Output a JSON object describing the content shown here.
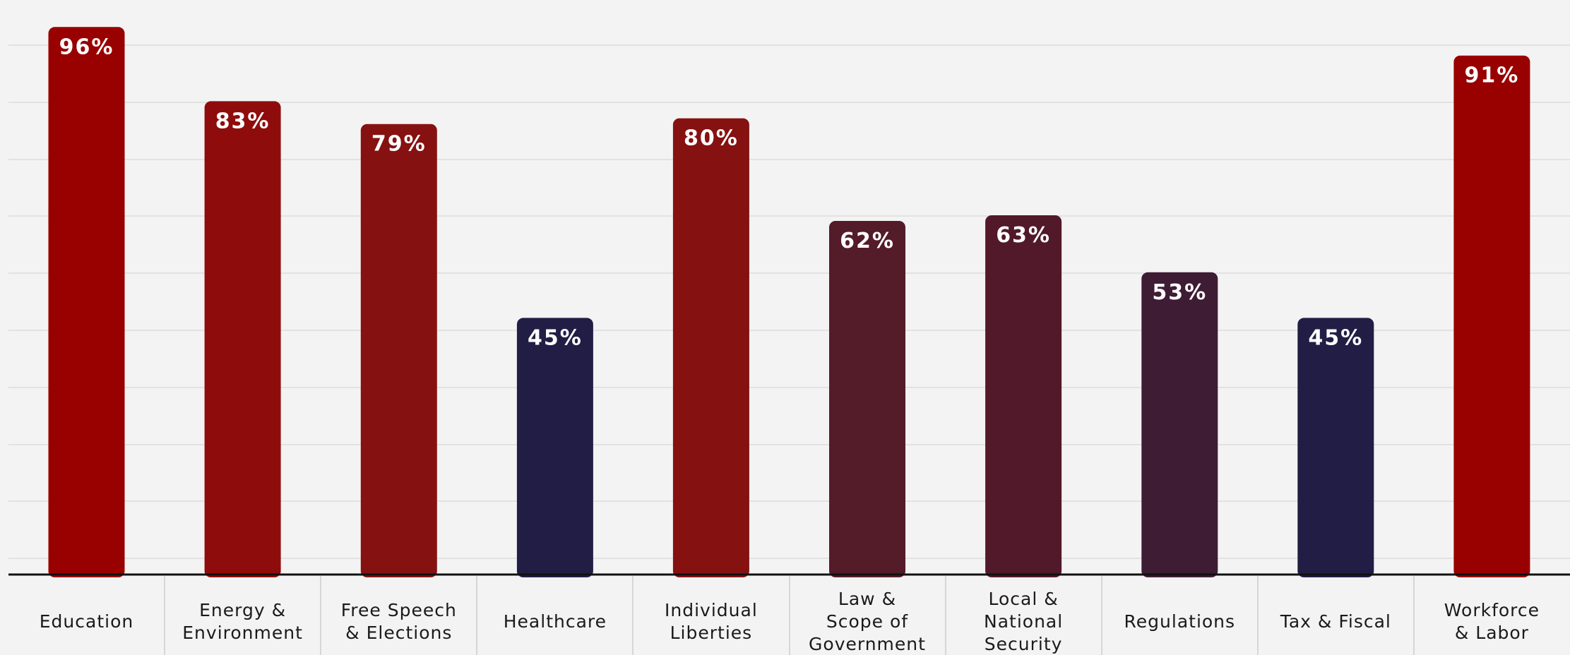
{
  "chart_data": {
    "type": "bar",
    "categories": [
      "Education",
      "Energy & Environment",
      "Free Speech & Elections",
      "Healthcare",
      "Individual Liberties",
      "Law & Scope of Government",
      "Local & National Security",
      "Regulations",
      "Tax & Fiscal",
      "Workforce & Labor"
    ],
    "category_lines": [
      [
        "Education"
      ],
      [
        "Energy &",
        "Environment"
      ],
      [
        "Free Speech",
        "& Elections"
      ],
      [
        "Healthcare"
      ],
      [
        "Individual",
        "Liberties"
      ],
      [
        "Law &",
        "Scope of",
        "Government"
      ],
      [
        "Local &",
        "National",
        "Security"
      ],
      [
        "Regulations"
      ],
      [
        "Tax & Fiscal"
      ],
      [
        "Workforce",
        "& Labor"
      ]
    ],
    "values": [
      96,
      83,
      79,
      45,
      80,
      62,
      63,
      53,
      45,
      91
    ],
    "value_labels": [
      "96%",
      "83%",
      "79%",
      "45%",
      "80%",
      "62%",
      "63%",
      "53%",
      "45%",
      "91%"
    ],
    "bar_colors": [
      "#990000",
      "#8f0c0c",
      "#861111",
      "#221d45",
      "#861111",
      "#541b29",
      "#51192a",
      "#3e1c34",
      "#221d45",
      "#990000"
    ],
    "ylim": [
      0,
      100
    ],
    "grid": true,
    "title": "",
    "xlabel": "",
    "ylabel": ""
  }
}
